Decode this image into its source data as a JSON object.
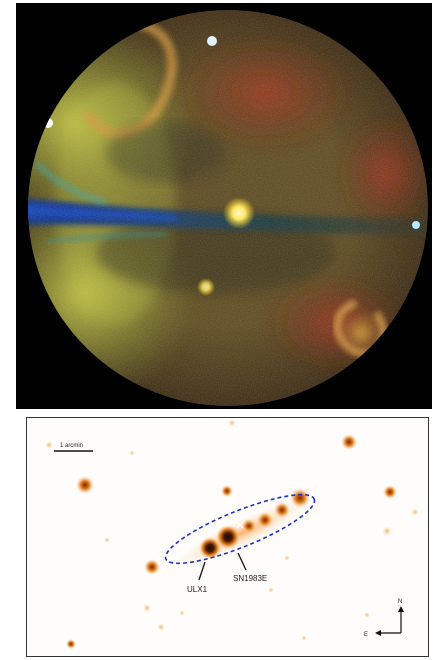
{
  "top_panel": {
    "type": "all-sky x-ray map"
  },
  "bottom_panel": {
    "scale_bar_label": "1 arcmin",
    "source_labels": {
      "ulx": "ULX1",
      "sn": "SN1983E"
    },
    "compass": {
      "north": "N",
      "east": "E"
    },
    "colors": {
      "ellipse": "#1b2fd6",
      "marker": "#ffffff",
      "source_core": "#1a0a00",
      "source_glow": "#f39a2e"
    }
  }
}
